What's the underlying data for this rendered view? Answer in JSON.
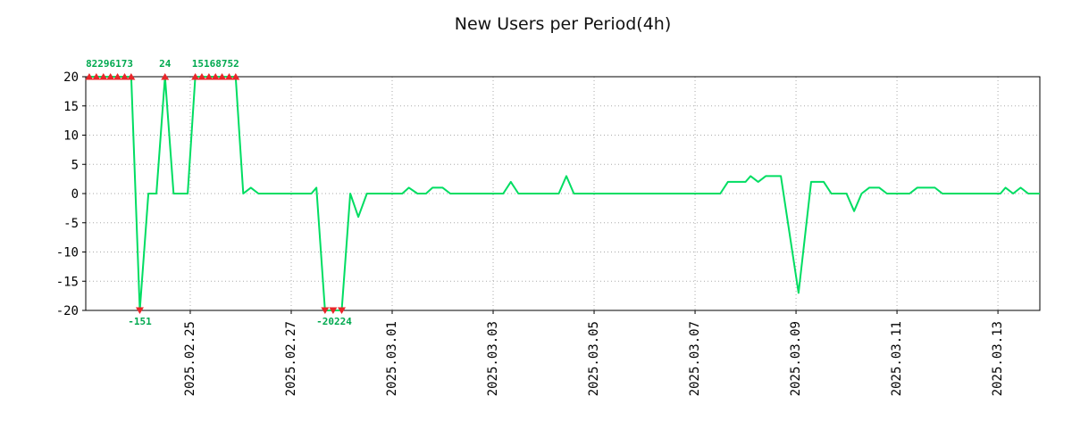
{
  "chart_data": {
    "type": "line",
    "title": "New Users per Period(4h)",
    "xlabel": "",
    "ylabel": "",
    "ylim": [
      -20,
      20
    ],
    "yticks": [
      -20,
      -15,
      -10,
      -5,
      0,
      5,
      10,
      15,
      20
    ],
    "xlim": [
      -0.07,
      18.83
    ],
    "xticks": [
      {
        "pos": 2,
        "label": "2025.02.25"
      },
      {
        "pos": 4,
        "label": "2025.02.27"
      },
      {
        "pos": 6,
        "label": "2025.03.01"
      },
      {
        "pos": 8,
        "label": "2025.03.03"
      },
      {
        "pos": 10,
        "label": "2025.03.05"
      },
      {
        "pos": 12,
        "label": "2025.03.07"
      },
      {
        "pos": 14,
        "label": "2025.03.09"
      },
      {
        "pos": 16,
        "label": "2025.03.11"
      },
      {
        "pos": 18,
        "label": "2025.03.13"
      }
    ],
    "grid": true,
    "grid_color": "#aaaaaa",
    "line_color": "#00dd62",
    "marker_color": "#e8262a",
    "annotation_color": "#00a94f",
    "series": [
      {
        "name": "New Users",
        "points": [
          [
            0,
            20
          ],
          [
            0.83,
            20
          ],
          [
            1.0,
            -20
          ],
          [
            1.17,
            0
          ],
          [
            1.33,
            0
          ],
          [
            1.5,
            20
          ],
          [
            1.67,
            0
          ],
          [
            1.95,
            0
          ],
          [
            2.1,
            20
          ],
          [
            2.9,
            20
          ],
          [
            3.05,
            0
          ],
          [
            3.2,
            1
          ],
          [
            3.35,
            0
          ],
          [
            4.4,
            0
          ],
          [
            4.5,
            1
          ],
          [
            4.67,
            -20
          ],
          [
            5.0,
            -20
          ],
          [
            5.17,
            0
          ],
          [
            5.33,
            -4
          ],
          [
            5.5,
            0
          ],
          [
            6.2,
            0
          ],
          [
            6.33,
            1
          ],
          [
            6.5,
            0
          ],
          [
            6.67,
            0
          ],
          [
            6.8,
            1
          ],
          [
            7.0,
            1
          ],
          [
            7.15,
            0
          ],
          [
            8.2,
            0
          ],
          [
            8.35,
            2
          ],
          [
            8.5,
            0
          ],
          [
            9.3,
            0
          ],
          [
            9.45,
            3
          ],
          [
            9.6,
            0
          ],
          [
            12.5,
            0
          ],
          [
            12.65,
            2
          ],
          [
            13.0,
            2
          ],
          [
            13.1,
            3
          ],
          [
            13.25,
            2
          ],
          [
            13.4,
            3
          ],
          [
            13.7,
            3
          ],
          [
            14.05,
            -17
          ],
          [
            14.3,
            2
          ],
          [
            14.55,
            2
          ],
          [
            14.7,
            0
          ],
          [
            15.0,
            0
          ],
          [
            15.15,
            -3
          ],
          [
            15.3,
            0
          ],
          [
            15.45,
            1
          ],
          [
            15.65,
            1
          ],
          [
            15.8,
            0
          ],
          [
            16.25,
            0
          ],
          [
            16.4,
            1
          ],
          [
            16.75,
            1
          ],
          [
            16.9,
            0
          ],
          [
            18.05,
            0
          ],
          [
            18.15,
            1
          ],
          [
            18.3,
            0
          ],
          [
            18.45,
            1
          ],
          [
            18.6,
            0
          ],
          [
            18.83,
            0
          ]
        ]
      }
    ],
    "clip_markers": {
      "up": [
        0,
        0.14,
        0.28,
        0.42,
        0.56,
        0.7,
        0.83,
        1.5,
        2.1,
        2.23,
        2.37,
        2.5,
        2.63,
        2.77,
        2.9
      ],
      "down": [
        1.0,
        4.67,
        4.83,
        5.0
      ]
    },
    "annotations": {
      "top": [
        {
          "x": 0.4,
          "text": "82296173"
        },
        {
          "x": 1.5,
          "text": "24"
        },
        {
          "x": 2.5,
          "text": "15168752"
        }
      ],
      "bottom": [
        {
          "x": 1.0,
          "text": "-151"
        },
        {
          "x": 4.85,
          "text": "-20224"
        }
      ]
    }
  }
}
